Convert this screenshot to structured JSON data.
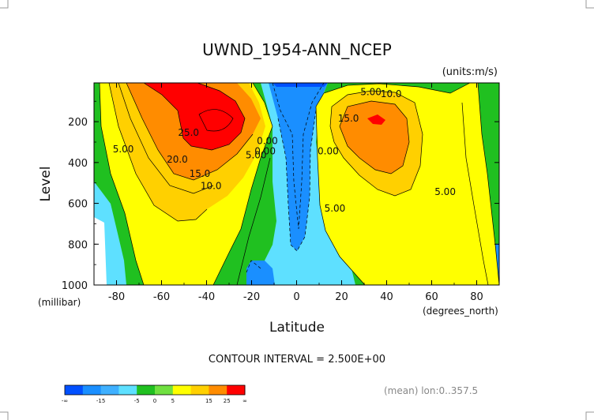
{
  "chart_data": {
    "type": "contour",
    "title": "UWND_1954-ANN_NCEP",
    "units_label": "(units:m/s)",
    "xlabel": "Latitude",
    "ylabel": "Level",
    "x_unit_label": "(degrees_north)",
    "y_unit_label": "(millibar)",
    "x_ticks": [
      "-80",
      "-60",
      "-40",
      "-20",
      "0",
      "20",
      "40",
      "60",
      "80"
    ],
    "y_ticks": [
      "200",
      "400",
      "600",
      "800",
      "1000"
    ],
    "xlim": [
      -90,
      90
    ],
    "ylim": [
      1000,
      10
    ],
    "contour_interval_text": "CONTOUR INTERVAL = 2.500E+00",
    "footer_note": "(mean) lon:0..357.5",
    "contour_labels": [
      {
        "text": "5.00",
        "x": -77,
        "y": 350
      },
      {
        "text": "25.0",
        "x": -48,
        "y": 270
      },
      {
        "text": "20.0",
        "x": -53,
        "y": 400
      },
      {
        "text": "15.0",
        "x": -43,
        "y": 470
      },
      {
        "text": "10.0",
        "x": -38,
        "y": 530
      },
      {
        "text": "5.00",
        "x": -18,
        "y": 380
      },
      {
        "text": "0.00",
        "x": -13,
        "y": 310
      },
      {
        "text": "0.00",
        "x": -14,
        "y": 360
      },
      {
        "text": "0.00",
        "x": 14,
        "y": 360
      },
      {
        "text": "5.00",
        "x": 17,
        "y": 640
      },
      {
        "text": "5.00",
        "x": 33,
        "y": 70
      },
      {
        "text": "10.0",
        "x": 42,
        "y": 80
      },
      {
        "text": "15.0",
        "x": 23,
        "y": 200
      },
      {
        "text": "5.00",
        "x": 66,
        "y": 560
      }
    ],
    "legend": {
      "tick_labels": [
        "-∞",
        "-15",
        "-5",
        "0",
        "5",
        "15",
        "25",
        "∞"
      ],
      "colors": [
        "#0050ff",
        "#1a8fff",
        "#3fb0ff",
        "#5ee0ff",
        "#20c020",
        "#70e040",
        "#ffff00",
        "#ffd000",
        "#ff8c00",
        "#ff0000"
      ]
    }
  }
}
